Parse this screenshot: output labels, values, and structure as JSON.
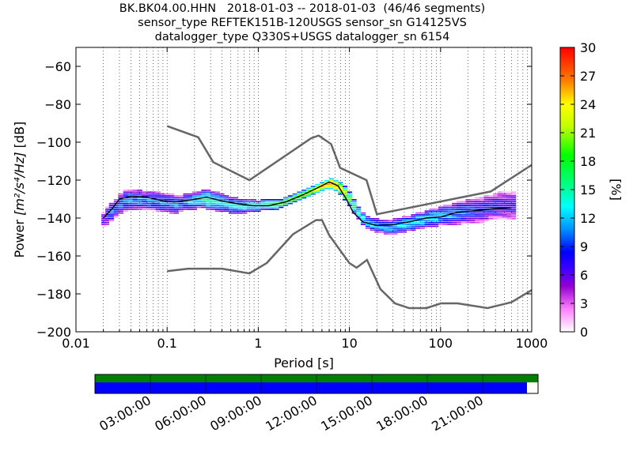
{
  "title_lines": [
    "BK.BK04.00.HHN   2018-01-03 -- 2018-01-03  (46/46 segments)",
    "sensor_type REFTEK151B-120USGS sensor_sn G14125VS",
    "datalogger_type Q330S+USGS datalogger_sn 6154"
  ],
  "chart_data": {
    "type": "heatmap",
    "xlabel": "Period [s]",
    "ylabel_prefix": "Power",
    "ylabel_unit": "[m²/s⁴/Hz]",
    "ylabel_suffix": "[dB]",
    "xscale": "log",
    "xlim": [
      0.01,
      1000
    ],
    "ylim": [
      -200,
      -50
    ],
    "x_ticks": [
      0.01,
      0.1,
      1,
      10,
      100,
      1000
    ],
    "x_tick_labels": [
      "0.01",
      "0.1",
      "1",
      "10",
      "100",
      "1000"
    ],
    "y_ticks": [
      -200,
      -180,
      -160,
      -140,
      -120,
      -100,
      -80,
      -60
    ],
    "y_tick_labels": [
      "−200",
      "−180",
      "−160",
      "−140",
      "−120",
      "−100",
      "−80",
      "−60"
    ],
    "grid": "dotted vertical minor lines",
    "colorbar": {
      "label": "[%]",
      "min": 0,
      "max": 30,
      "ticks": [
        0,
        3,
        6,
        9,
        12,
        15,
        18,
        21,
        24,
        27,
        30
      ],
      "tick_labels": [
        "0",
        "3",
        "6",
        "9",
        "12",
        "15",
        "18",
        "21",
        "24",
        "27",
        "30"
      ]
    },
    "nhnm": [
      [
        0.1,
        -91.5
      ],
      [
        0.22,
        -97.4
      ],
      [
        0.32,
        -110.5
      ],
      [
        0.8,
        -120
      ],
      [
        3.8,
        -97.9
      ],
      [
        4.6,
        -96.5
      ],
      [
        6.3,
        -101
      ],
      [
        7.9,
        -113.5
      ],
      [
        15.4,
        -120
      ],
      [
        20,
        -138
      ],
      [
        354.8,
        -126
      ],
      [
        1000,
        -112
      ]
    ],
    "nlnm": [
      [
        0.1,
        -168
      ],
      [
        0.17,
        -166.7
      ],
      [
        0.4,
        -166.7
      ],
      [
        0.8,
        -169.2
      ],
      [
        1.24,
        -163.7
      ],
      [
        2.4,
        -148.6
      ],
      [
        4.3,
        -141.1
      ],
      [
        5,
        -141.1
      ],
      [
        6,
        -149
      ],
      [
        10,
        -163.8
      ],
      [
        12,
        -166.2
      ],
      [
        15.6,
        -162.1
      ],
      [
        21.9,
        -177.5
      ],
      [
        31.6,
        -185
      ],
      [
        45,
        -187.5
      ],
      [
        70,
        -187.5
      ],
      [
        101,
        -185
      ],
      [
        154,
        -185
      ],
      [
        328,
        -187.5
      ],
      [
        600,
        -184.4
      ],
      [
        1000,
        -178
      ]
    ],
    "mode": [
      [
        0.02,
        -140
      ],
      [
        0.025,
        -135
      ],
      [
        0.03,
        -130
      ],
      [
        0.04,
        -128.5
      ],
      [
        0.06,
        -129
      ],
      [
        0.09,
        -131
      ],
      [
        0.12,
        -131.5
      ],
      [
        0.18,
        -130.5
      ],
      [
        0.27,
        -129
      ],
      [
        0.4,
        -131
      ],
      [
        0.6,
        -132.5
      ],
      [
        0.9,
        -133.5
      ],
      [
        1.3,
        -133.5
      ],
      [
        2,
        -131.5
      ],
      [
        3,
        -128
      ],
      [
        4.5,
        -124
      ],
      [
        6,
        -121
      ],
      [
        7.5,
        -123
      ],
      [
        9,
        -129
      ],
      [
        11,
        -137
      ],
      [
        14,
        -142
      ],
      [
        20,
        -144
      ],
      [
        30,
        -143.5
      ],
      [
        45,
        -142
      ],
      [
        70,
        -140
      ],
      [
        100,
        -139.5
      ],
      [
        150,
        -137
      ],
      [
        200,
        -136.5
      ],
      [
        400,
        -135
      ],
      [
        600,
        -134.5
      ]
    ],
    "density": [
      {
        "p": 0.019,
        "lo": -145,
        "hi": -137,
        "c": 6
      },
      {
        "p": 0.021,
        "lo": -144,
        "hi": -134,
        "c": 8
      },
      {
        "p": 0.023,
        "lo": -142,
        "hi": -132,
        "c": 10
      },
      {
        "p": 0.026,
        "lo": -140,
        "hi": -130,
        "c": 9
      },
      {
        "p": 0.029,
        "lo": -138,
        "hi": -127,
        "c": 10
      },
      {
        "p": 0.033,
        "lo": -137,
        "hi": -125,
        "c": 10
      },
      {
        "p": 0.037,
        "lo": -136,
        "hi": -125,
        "c": 11
      },
      {
        "p": 0.042,
        "lo": -136,
        "hi": -125,
        "c": 10
      },
      {
        "p": 0.047,
        "lo": -136,
        "hi": -125,
        "c": 11
      },
      {
        "p": 0.053,
        "lo": -136,
        "hi": -126,
        "c": 10
      },
      {
        "p": 0.06,
        "lo": -136,
        "hi": -126,
        "c": 11
      },
      {
        "p": 0.067,
        "lo": -136,
        "hi": -126,
        "c": 10
      },
      {
        "p": 0.075,
        "lo": -137,
        "hi": -126,
        "c": 10
      },
      {
        "p": 0.084,
        "lo": -137,
        "hi": -127,
        "c": 11
      },
      {
        "p": 0.094,
        "lo": -137,
        "hi": -127,
        "c": 10
      },
      {
        "p": 0.106,
        "lo": -138,
        "hi": -127,
        "c": 10
      },
      {
        "p": 0.119,
        "lo": -138,
        "hi": -128,
        "c": 11
      },
      {
        "p": 0.133,
        "lo": -137,
        "hi": -128,
        "c": 10
      },
      {
        "p": 0.15,
        "lo": -136,
        "hi": -127,
        "c": 11
      },
      {
        "p": 0.168,
        "lo": -136,
        "hi": -127,
        "c": 12
      },
      {
        "p": 0.188,
        "lo": -136,
        "hi": -126,
        "c": 12
      },
      {
        "p": 0.211,
        "lo": -135,
        "hi": -126,
        "c": 13
      },
      {
        "p": 0.237,
        "lo": -135,
        "hi": -125,
        "c": 14
      },
      {
        "p": 0.266,
        "lo": -136,
        "hi": -125,
        "c": 15
      },
      {
        "p": 0.299,
        "lo": -136,
        "hi": -126,
        "c": 14
      },
      {
        "p": 0.335,
        "lo": -137,
        "hi": -126,
        "c": 13
      },
      {
        "p": 0.376,
        "lo": -137,
        "hi": -127,
        "c": 13
      },
      {
        "p": 0.422,
        "lo": -137,
        "hi": -128,
        "c": 13
      },
      {
        "p": 0.473,
        "lo": -138,
        "hi": -129,
        "c": 13
      },
      {
        "p": 0.531,
        "lo": -138,
        "hi": -129,
        "c": 13
      },
      {
        "p": 0.596,
        "lo": -138,
        "hi": -130,
        "c": 13
      },
      {
        "p": 0.668,
        "lo": -138,
        "hi": -130,
        "c": 13
      },
      {
        "p": 0.75,
        "lo": -137,
        "hi": -130,
        "c": 13
      },
      {
        "p": 0.841,
        "lo": -137,
        "hi": -130,
        "c": 14
      },
      {
        "p": 0.944,
        "lo": -137,
        "hi": -131,
        "c": 14
      },
      {
        "p": 1.06,
        "lo": -136,
        "hi": -130,
        "c": 15
      },
      {
        "p": 1.19,
        "lo": -136,
        "hi": -130,
        "c": 16
      },
      {
        "p": 1.33,
        "lo": -136,
        "hi": -130,
        "c": 17
      },
      {
        "p": 1.5,
        "lo": -136,
        "hi": -130,
        "c": 18
      },
      {
        "p": 1.68,
        "lo": -135,
        "hi": -130,
        "c": 19
      },
      {
        "p": 1.88,
        "lo": -134,
        "hi": -129,
        "c": 19
      },
      {
        "p": 2.11,
        "lo": -133,
        "hi": -128,
        "c": 20
      },
      {
        "p": 2.37,
        "lo": -132,
        "hi": -127,
        "c": 20
      },
      {
        "p": 2.66,
        "lo": -131,
        "hi": -126,
        "c": 21
      },
      {
        "p": 2.99,
        "lo": -130,
        "hi": -125,
        "c": 21
      },
      {
        "p": 3.35,
        "lo": -129,
        "hi": -124,
        "c": 22
      },
      {
        "p": 3.76,
        "lo": -128,
        "hi": -123,
        "c": 23
      },
      {
        "p": 4.22,
        "lo": -127,
        "hi": -122,
        "c": 24
      },
      {
        "p": 4.73,
        "lo": -126,
        "hi": -121,
        "c": 25
      },
      {
        "p": 5.31,
        "lo": -125,
        "hi": -120,
        "c": 26
      },
      {
        "p": 5.96,
        "lo": -125,
        "hi": -119,
        "c": 27
      },
      {
        "p": 6.68,
        "lo": -126,
        "hi": -120,
        "c": 26
      },
      {
        "p": 7.5,
        "lo": -128,
        "hi": -121,
        "c": 24
      },
      {
        "p": 8.41,
        "lo": -131,
        "hi": -123,
        "c": 22
      },
      {
        "p": 9.44,
        "lo": -134,
        "hi": -126,
        "c": 19
      },
      {
        "p": 10.6,
        "lo": -138,
        "hi": -130,
        "c": 16
      },
      {
        "p": 11.9,
        "lo": -141,
        "hi": -134,
        "c": 14
      },
      {
        "p": 13.3,
        "lo": -144,
        "hi": -137,
        "c": 13
      },
      {
        "p": 15,
        "lo": -146,
        "hi": -139,
        "c": 12
      },
      {
        "p": 16.8,
        "lo": -147,
        "hi": -140,
        "c": 12
      },
      {
        "p": 18.8,
        "lo": -148,
        "hi": -140,
        "c": 11
      },
      {
        "p": 21.1,
        "lo": -148,
        "hi": -141,
        "c": 11
      },
      {
        "p": 23.7,
        "lo": -149,
        "hi": -141,
        "c": 11
      },
      {
        "p": 26.6,
        "lo": -149,
        "hi": -141,
        "c": 11
      },
      {
        "p": 29.9,
        "lo": -149,
        "hi": -140,
        "c": 11
      },
      {
        "p": 33.5,
        "lo": -148,
        "hi": -140,
        "c": 12
      },
      {
        "p": 37.6,
        "lo": -148,
        "hi": -139,
        "c": 12
      },
      {
        "p": 42.2,
        "lo": -147,
        "hi": -139,
        "c": 12
      },
      {
        "p": 47.3,
        "lo": -147,
        "hi": -138,
        "c": 12
      },
      {
        "p": 53.1,
        "lo": -146,
        "hi": -137,
        "c": 12
      },
      {
        "p": 59.6,
        "lo": -146,
        "hi": -137,
        "c": 12
      },
      {
        "p": 66.8,
        "lo": -145,
        "hi": -136,
        "c": 12
      },
      {
        "p": 75,
        "lo": -145,
        "hi": -135,
        "c": 12
      },
      {
        "p": 84.1,
        "lo": -145,
        "hi": -135,
        "c": 12
      },
      {
        "p": 94.4,
        "lo": -144,
        "hi": -134,
        "c": 11
      },
      {
        "p": 106,
        "lo": -144,
        "hi": -133,
        "c": 11
      },
      {
        "p": 119,
        "lo": -144,
        "hi": -133,
        "c": 11
      },
      {
        "p": 133,
        "lo": -144,
        "hi": -132,
        "c": 10
      },
      {
        "p": 150,
        "lo": -144,
        "hi": -131,
        "c": 10
      },
      {
        "p": 168,
        "lo": -143,
        "hi": -131,
        "c": 10
      },
      {
        "p": 188,
        "lo": -143,
        "hi": -130,
        "c": 9
      },
      {
        "p": 211,
        "lo": -143,
        "hi": -130,
        "c": 9
      },
      {
        "p": 237,
        "lo": -143,
        "hi": -129,
        "c": 8
      },
      {
        "p": 266,
        "lo": -143,
        "hi": -129,
        "c": 8
      },
      {
        "p": 299,
        "lo": -142,
        "hi": -128,
        "c": 8
      },
      {
        "p": 335,
        "lo": -141,
        "hi": -128,
        "c": 8
      },
      {
        "p": 376,
        "lo": -141,
        "hi": -127,
        "c": 8
      },
      {
        "p": 422,
        "lo": -141,
        "hi": -126,
        "c": 7
      },
      {
        "p": 473,
        "lo": -141,
        "hi": -126,
        "c": 7
      },
      {
        "p": 531,
        "lo": -141,
        "hi": -126,
        "c": 7
      },
      {
        "p": 596,
        "lo": -141,
        "hi": -126,
        "c": 7
      }
    ]
  },
  "timeline": {
    "data_coverage_fraction": 0.975,
    "tick_labels": [
      "03:00:00",
      "06:00:00",
      "09:00:00",
      "12:00:00",
      "15:00:00",
      "18:00:00",
      "21:00:00"
    ],
    "tick_hours": [
      3,
      6,
      9,
      12,
      15,
      18,
      21
    ],
    "span_hours": 24,
    "colors": {
      "segments": "#008000",
      "data": "#0000ff"
    }
  }
}
